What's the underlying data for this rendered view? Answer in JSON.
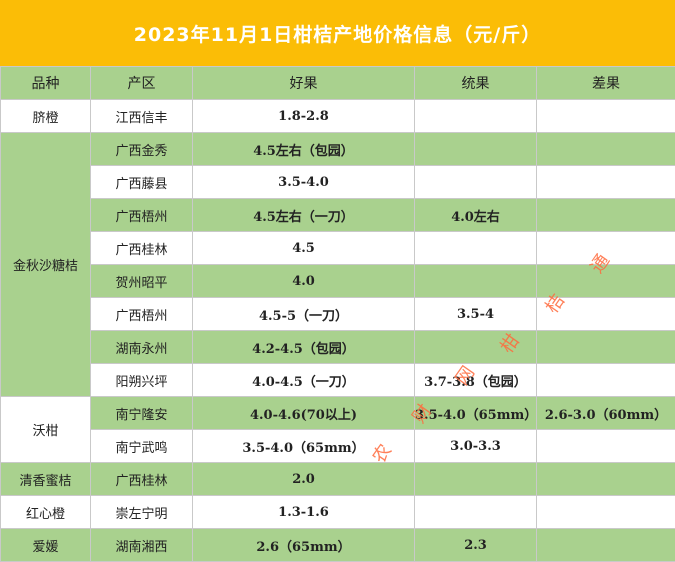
{
  "title": "2023年11月1日柑桔产地价格信息（元/斤）",
  "headers": {
    "variety": "品种",
    "region": "产区",
    "good": "好果",
    "mixed": "统果",
    "poor": "差果"
  },
  "rows": [
    {
      "variety": "脐橙",
      "region": "江西信丰",
      "good": "1.8-2.8",
      "mixed": "",
      "poor": ""
    },
    {
      "variety": "金秋沙糖桔",
      "region": "广西金秀",
      "good": "4.5左右（包园）",
      "mixed": "",
      "poor": ""
    },
    {
      "variety": "",
      "region": "广西藤县",
      "good": "3.5-4.0",
      "mixed": "",
      "poor": ""
    },
    {
      "variety": "",
      "region": "广西梧州",
      "good": "4.5左右（一刀）",
      "mixed": "4.0左右",
      "poor": ""
    },
    {
      "variety": "",
      "region": "广西桂林",
      "good": "4.5",
      "mixed": "",
      "poor": ""
    },
    {
      "variety": "",
      "region": "贺州昭平",
      "good": "4.0",
      "mixed": "",
      "poor": ""
    },
    {
      "variety": "",
      "region": "广西梧州",
      "good": "4.5-5（一刀）",
      "mixed": "3.5-4",
      "poor": ""
    },
    {
      "variety": "",
      "region": "湖南永州",
      "good": "4.2-4.5（包园）",
      "mixed": "",
      "poor": ""
    },
    {
      "variety": "",
      "region": "阳朔兴坪",
      "good": "4.0-4.5（一刀）",
      "mixed": "3.7-3.8（包园）",
      "poor": ""
    },
    {
      "variety": "沃柑",
      "region": "南宁隆安",
      "good": "4.0-4.6(70以上)",
      "mixed": "3.5-4.0（65mm）",
      "poor": "2.6-3.0（60mm）"
    },
    {
      "variety": "",
      "region": "南宁武鸣",
      "good": "3.5-4.0（65mm）",
      "mixed": "3.0-3.3",
      "poor": ""
    },
    {
      "variety": "清香蜜桔",
      "region": "广西桂林",
      "good": "2.0",
      "mixed": "",
      "poor": ""
    },
    {
      "variety": "红心橙",
      "region": "崇左宁明",
      "good": "1.3-1.6",
      "mixed": "",
      "poor": ""
    },
    {
      "variety": "爱媛",
      "region": "湖南湘西",
      "good": "2.6（65mm）",
      "mixed": "2.3",
      "poor": ""
    }
  ],
  "watermark": [
    "农",
    "财",
    "网",
    "柑",
    "桔",
    "通"
  ]
}
